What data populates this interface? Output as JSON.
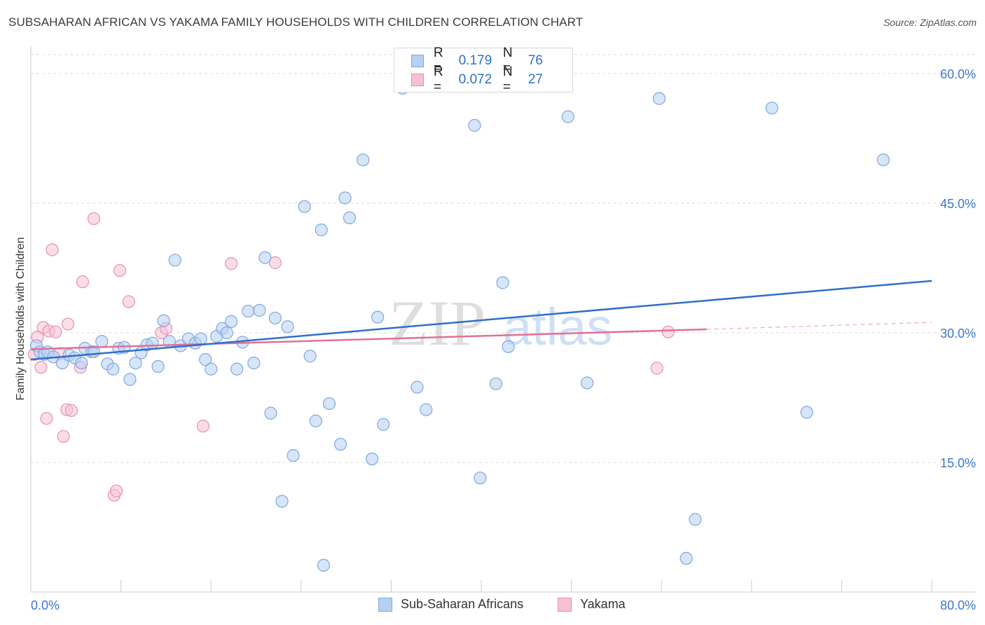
{
  "header": {
    "title": "SUBSAHARAN AFRICAN VS YAKAMA FAMILY HOUSEHOLDS WITH CHILDREN CORRELATION CHART",
    "source": "Source: ZipAtlas.com"
  },
  "colors": {
    "blue_fill": "#b6d0f2",
    "blue_stroke": "#7ea8dd",
    "blue_line": "#2f6fc9",
    "pink_fill": "#f6c1d3",
    "pink_stroke": "#e890b0",
    "pink_line": "#e0709a",
    "grid": "#dcdcdc",
    "tick_label": "#3b78d0"
  },
  "legend_top": {
    "series": [
      {
        "r_label": "R =",
        "r_value": "0.179",
        "n_label": "N =",
        "n_value": "76"
      },
      {
        "r_label": "R =",
        "r_value": "0.072",
        "n_label": "N =",
        "n_value": "27"
      }
    ]
  },
  "watermark": {
    "zip": "ZIP",
    "atlas": "atlas"
  },
  "chart_data": {
    "type": "scatter",
    "title": "SUBSAHARAN AFRICAN VS YAKAMA FAMILY HOUSEHOLDS WITH CHILDREN CORRELATION CHART",
    "xlabel": "",
    "ylabel": "Family Households with Children",
    "xlim": [
      0,
      80
    ],
    "ylim": [
      0,
      62.5
    ],
    "x_tick_labels": [
      "0.0%",
      "80.0%"
    ],
    "y_ticks": [
      15,
      30,
      45,
      60
    ],
    "y_tick_labels": [
      "15.0%",
      "30.0%",
      "45.0%",
      "60.0%"
    ],
    "grid": true,
    "legend_position": "bottom",
    "series": [
      {
        "name": "Sub-Saharan Africans",
        "trend": {
          "x": [
            0,
            80
          ],
          "y": [
            26.9,
            36.0
          ]
        },
        "points": [
          [
            0.5,
            28.5
          ],
          [
            0.8,
            27.8
          ],
          [
            1.2,
            27.5
          ],
          [
            1.5,
            27.8
          ],
          [
            2.0,
            27.2
          ],
          [
            2.8,
            26.5
          ],
          [
            3.4,
            27.4
          ],
          [
            3.9,
            27.1
          ],
          [
            4.5,
            26.5
          ],
          [
            4.8,
            28.2
          ],
          [
            5.4,
            27.8
          ],
          [
            5.6,
            27.8
          ],
          [
            6.3,
            29.0
          ],
          [
            6.8,
            26.4
          ],
          [
            7.3,
            25.8
          ],
          [
            7.8,
            28.2
          ],
          [
            8.3,
            28.3
          ],
          [
            8.8,
            24.6
          ],
          [
            9.3,
            26.5
          ],
          [
            9.8,
            27.7
          ],
          [
            10.3,
            28.6
          ],
          [
            10.8,
            28.8
          ],
          [
            11.3,
            26.1
          ],
          [
            11.8,
            31.4
          ],
          [
            12.3,
            29.0
          ],
          [
            12.8,
            38.4
          ],
          [
            13.3,
            28.5
          ],
          [
            14.0,
            29.3
          ],
          [
            14.6,
            28.8
          ],
          [
            15.1,
            29.3
          ],
          [
            15.5,
            26.9
          ],
          [
            16.0,
            25.8
          ],
          [
            16.5,
            29.6
          ],
          [
            17.0,
            30.5
          ],
          [
            17.4,
            30.0
          ],
          [
            17.8,
            31.3
          ],
          [
            18.3,
            25.8
          ],
          [
            18.8,
            28.9
          ],
          [
            19.3,
            32.5
          ],
          [
            19.8,
            26.5
          ],
          [
            20.3,
            32.6
          ],
          [
            20.8,
            38.7
          ],
          [
            21.3,
            20.7
          ],
          [
            21.7,
            31.7
          ],
          [
            22.3,
            10.5
          ],
          [
            22.8,
            30.7
          ],
          [
            23.3,
            15.8
          ],
          [
            24.3,
            44.6
          ],
          [
            24.8,
            27.3
          ],
          [
            25.3,
            19.8
          ],
          [
            25.8,
            41.9
          ],
          [
            26.0,
            3.1
          ],
          [
            26.5,
            21.8
          ],
          [
            27.5,
            17.1
          ],
          [
            27.9,
            45.6
          ],
          [
            28.3,
            43.3
          ],
          [
            29.5,
            50.0
          ],
          [
            30.3,
            15.4
          ],
          [
            30.8,
            31.8
          ],
          [
            31.3,
            19.4
          ],
          [
            33.0,
            58.3
          ],
          [
            34.3,
            23.7
          ],
          [
            35.1,
            21.1
          ],
          [
            39.4,
            54.0
          ],
          [
            39.9,
            13.2
          ],
          [
            41.3,
            24.1
          ],
          [
            41.9,
            35.8
          ],
          [
            42.4,
            28.4
          ],
          [
            47.7,
            55.0
          ],
          [
            49.4,
            24.2
          ],
          [
            55.8,
            57.1
          ],
          [
            58.2,
            3.9
          ],
          [
            59.0,
            8.4
          ],
          [
            65.8,
            56.0
          ],
          [
            68.9,
            20.8
          ],
          [
            75.7,
            50.0
          ]
        ]
      },
      {
        "name": "Yakama",
        "trend": {
          "x": [
            0,
            60
          ],
          "y": [
            28.1,
            30.4
          ]
        },
        "trend_dashed": {
          "x": [
            60,
            80
          ],
          "y": [
            30.4,
            31.2
          ]
        },
        "points": [
          [
            0.3,
            27.5
          ],
          [
            0.6,
            29.5
          ],
          [
            0.9,
            26.0
          ],
          [
            1.1,
            30.6
          ],
          [
            1.4,
            20.1
          ],
          [
            1.6,
            30.2
          ],
          [
            1.9,
            39.6
          ],
          [
            2.2,
            30.1
          ],
          [
            2.6,
            27.6
          ],
          [
            2.9,
            18.0
          ],
          [
            3.2,
            21.1
          ],
          [
            3.3,
            31.0
          ],
          [
            3.6,
            21.0
          ],
          [
            4.4,
            26.0
          ],
          [
            4.6,
            35.9
          ],
          [
            5.6,
            43.2
          ],
          [
            7.4,
            11.2
          ],
          [
            7.6,
            11.7
          ],
          [
            7.9,
            37.2
          ],
          [
            8.7,
            33.6
          ],
          [
            11.6,
            30.0
          ],
          [
            12.0,
            30.5
          ],
          [
            15.3,
            19.2
          ],
          [
            17.8,
            38.0
          ],
          [
            21.7,
            38.1
          ],
          [
            55.6,
            25.9
          ],
          [
            56.6,
            30.1
          ]
        ]
      }
    ]
  },
  "legend_bottom": {
    "items": [
      {
        "label": "Sub-Saharan Africans"
      },
      {
        "label": "Yakama"
      }
    ]
  }
}
